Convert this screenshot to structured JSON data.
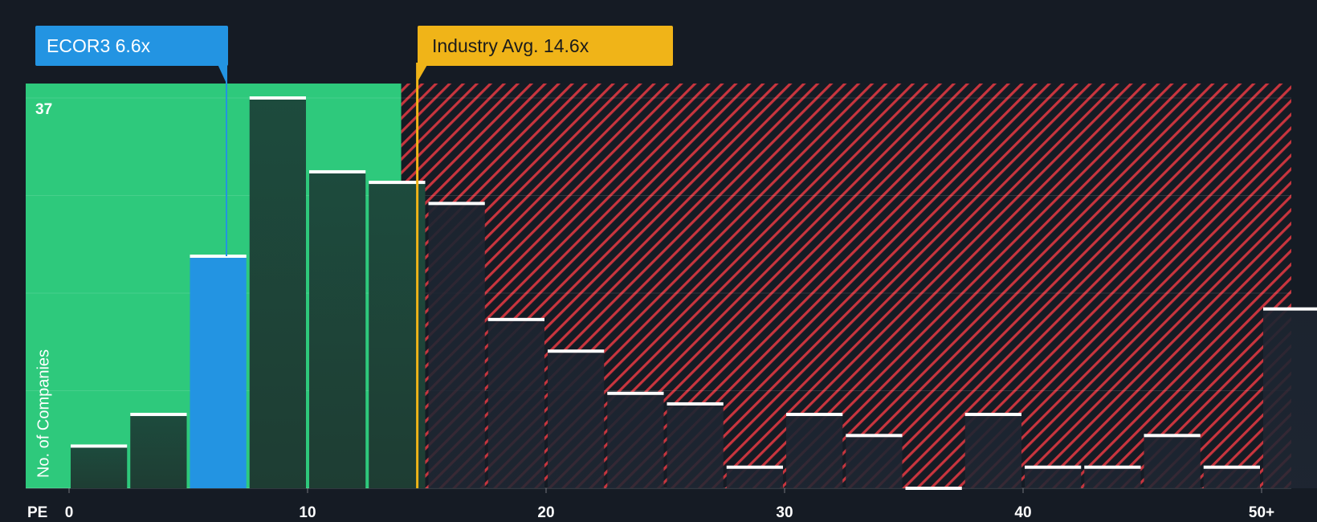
{
  "chart_data": {
    "type": "bar",
    "xlabel": "PE",
    "ylabel": "No. of Companies",
    "y_max_label": "37",
    "ylim": [
      0,
      37
    ],
    "bin_width": 2.5,
    "x_ticks": [
      {
        "value": 0,
        "label": "0"
      },
      {
        "value": 10,
        "label": "10"
      },
      {
        "value": 20,
        "label": "20"
      },
      {
        "value": 30,
        "label": "30"
      },
      {
        "value": 40,
        "label": "40"
      },
      {
        "value": 50,
        "label": "50+"
      }
    ],
    "bins": [
      {
        "start": 0.0,
        "count": 4
      },
      {
        "start": 2.5,
        "count": 7
      },
      {
        "start": 5.0,
        "count": 22
      },
      {
        "start": 7.5,
        "count": 37
      },
      {
        "start": 10.0,
        "count": 30
      },
      {
        "start": 12.5,
        "count": 29
      },
      {
        "start": 15.0,
        "count": 27
      },
      {
        "start": 17.5,
        "count": 16
      },
      {
        "start": 20.0,
        "count": 13
      },
      {
        "start": 22.5,
        "count": 9
      },
      {
        "start": 25.0,
        "count": 8
      },
      {
        "start": 27.5,
        "count": 2
      },
      {
        "start": 30.0,
        "count": 7
      },
      {
        "start": 32.5,
        "count": 5
      },
      {
        "start": 35.0,
        "count": 0
      },
      {
        "start": 37.5,
        "count": 7
      },
      {
        "start": 40.0,
        "count": 2
      },
      {
        "start": 42.5,
        "count": 2
      },
      {
        "start": 45.0,
        "count": 5
      },
      {
        "start": 47.5,
        "count": 2
      },
      {
        "start": 50.0,
        "count": 17
      }
    ],
    "company": {
      "ticker": "ECOR3",
      "value": 6.6,
      "label": "ECOR3 6.6x"
    },
    "industry_avg": {
      "value": 14.6,
      "label": "Industry Avg. 14.6x"
    },
    "colors": {
      "background": "#151b24",
      "fair_zone": "#2ec97c",
      "overvalued_zone": "#c8353e",
      "company": "#2394e2",
      "industry": "#f0b418",
      "bar_dark": "#1c4b3c",
      "bar_top": "#ffffff"
    }
  }
}
